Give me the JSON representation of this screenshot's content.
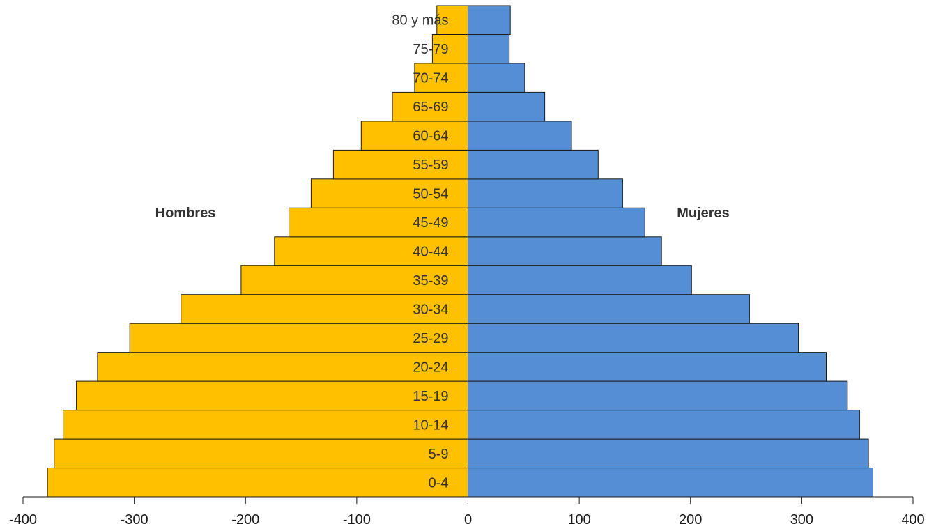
{
  "chart_data": {
    "type": "bar",
    "orientation": "horizontal",
    "layout": "population-pyramid",
    "categories": [
      "0-4",
      "5-9",
      "10-14",
      "15-19",
      "20-24",
      "25-29",
      "30-34",
      "35-39",
      "40-44",
      "45-49",
      "50-54",
      "55-59",
      "60-64",
      "65-69",
      "70-74",
      "75-79",
      "80 y más"
    ],
    "series": [
      {
        "name": "Hombres",
        "color": "#FFC000",
        "side": "left",
        "values": [
          -378,
          -372,
          -364,
          -352,
          -333,
          -304,
          -258,
          -204,
          -174,
          -161,
          -141,
          -121,
          -96,
          -68,
          -48,
          -32,
          -28
        ]
      },
      {
        "name": "Mujeres",
        "color": "#558ED5",
        "side": "right",
        "values": [
          364,
          360,
          352,
          341,
          322,
          297,
          253,
          201,
          174,
          159,
          139,
          117,
          93,
          69,
          51,
          37,
          38
        ]
      }
    ],
    "title": "",
    "xlabel": "",
    "ylabel": "",
    "xlim": [
      -400,
      400
    ],
    "xticks": [
      -400,
      -300,
      -200,
      -100,
      0,
      100,
      200,
      300,
      400
    ],
    "xtick_labels": [
      "-400",
      "-300",
      "-200",
      "-100",
      "0",
      "100",
      "200",
      "300",
      "400"
    ],
    "grid": false,
    "legend": "none",
    "series_labels": {
      "left": "Hombres",
      "right": "Mujeres"
    }
  }
}
